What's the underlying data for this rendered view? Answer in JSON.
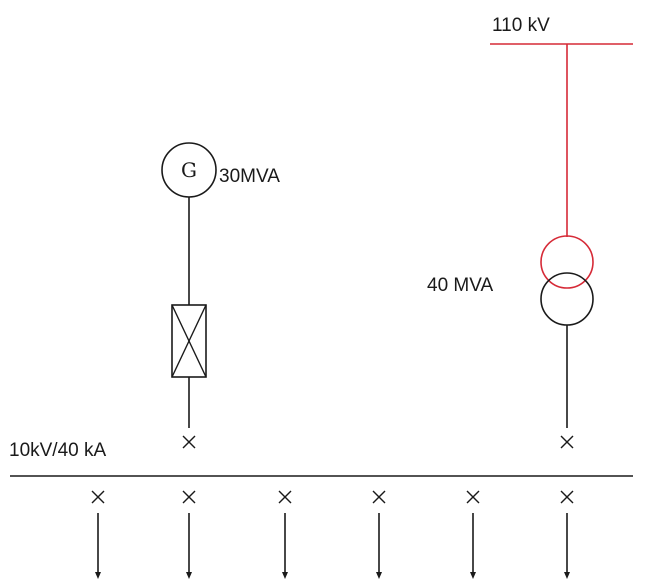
{
  "labels": {
    "hv_bus": "110 kV",
    "generator_symbol": "G",
    "generator_rating": "30MVA",
    "transformer_rating": "40 MVA",
    "lv_bus_rating": "10kV/40 kA"
  },
  "colors": {
    "line": "#1a1a1a",
    "hv": "#d62a37"
  },
  "outgoing_feeder_count": 6
}
